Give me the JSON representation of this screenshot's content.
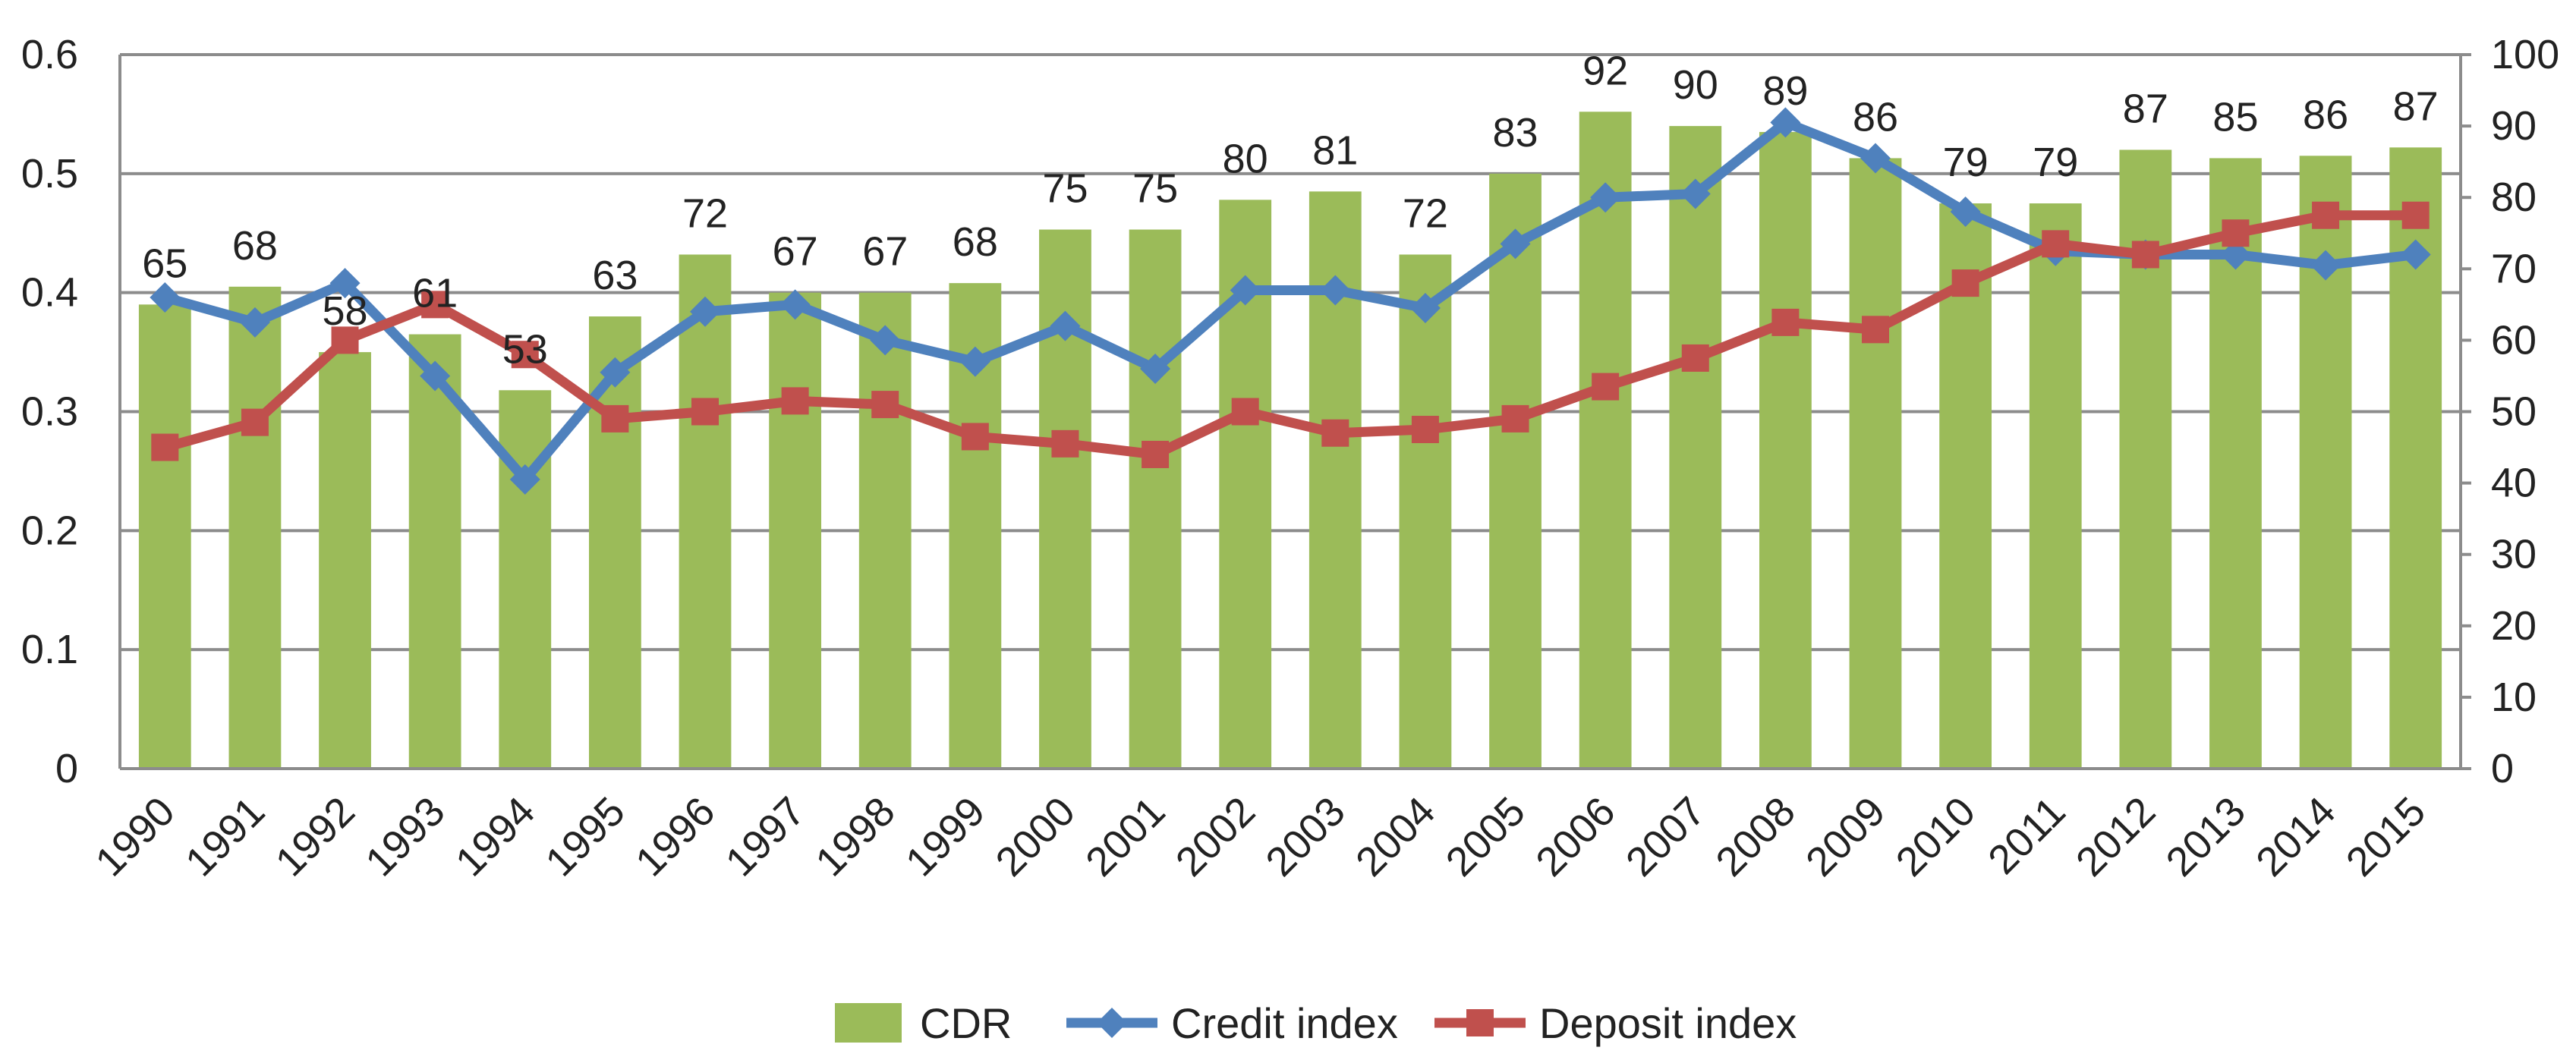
{
  "chart_data": {
    "type": "bar",
    "title": "",
    "categories": [
      "1990",
      "1991",
      "1992",
      "1993",
      "1994",
      "1995",
      "1996",
      "1997",
      "1998",
      "1999",
      "2000",
      "2001",
      "2002",
      "2003",
      "2004",
      "2005",
      "2006",
      "2007",
      "2008",
      "2009",
      "2010",
      "2011",
      "2012",
      "2013",
      "2014",
      "2015"
    ],
    "series": [
      {
        "name": "CDR",
        "type": "bar",
        "axis": "left",
        "color": "#9bbb59",
        "values": [
          0.39,
          0.405,
          0.35,
          0.365,
          0.318,
          0.38,
          0.432,
          0.4,
          0.4,
          0.408,
          0.453,
          0.453,
          0.478,
          0.485,
          0.432,
          0.5,
          0.552,
          0.54,
          0.535,
          0.513,
          0.475,
          0.475,
          0.52,
          0.513,
          0.515,
          0.522
        ],
        "labels": [
          "65",
          "68",
          "58",
          "61",
          "53",
          "63",
          "72",
          "67",
          "67",
          "68",
          "75",
          "75",
          "80",
          "81",
          "72",
          "83",
          "92",
          "90",
          "89",
          "86",
          "79",
          "79",
          "87",
          "85",
          "86",
          "87"
        ]
      },
      {
        "name": "Credit index",
        "type": "line",
        "marker": "diamond",
        "axis": "right",
        "color": "#4f81bd",
        "values": [
          66,
          62.5,
          68,
          55,
          40.5,
          55.5,
          64,
          65,
          60,
          57,
          62,
          56,
          67,
          67,
          64.5,
          73.5,
          80,
          80.5,
          90.5,
          85.5,
          78,
          72.5,
          72,
          72,
          70.5,
          72
        ]
      },
      {
        "name": "Deposit index",
        "type": "line",
        "marker": "square",
        "axis": "right",
        "color": "#c0504d",
        "values": [
          45,
          48.5,
          60,
          65,
          58,
          49,
          50,
          51.5,
          51,
          46.5,
          45.5,
          44,
          50,
          47,
          47.5,
          49,
          53.5,
          57.5,
          62.5,
          61.5,
          68,
          73.5,
          72,
          75,
          77.5,
          77.5
        ]
      }
    ],
    "y_left": {
      "ylim": [
        0,
        0.6
      ],
      "ticks": [
        "0",
        "0.1",
        "0.2",
        "0.3",
        "0.4",
        "0.5",
        "0.6"
      ]
    },
    "y_right": {
      "ylim": [
        0,
        100
      ],
      "ticks": [
        "0",
        "10",
        "20",
        "30",
        "40",
        "50",
        "60",
        "70",
        "80",
        "90",
        "100"
      ]
    },
    "grid": true,
    "legend": {
      "position": "bottom",
      "entries": [
        "CDR",
        "Credit index",
        "Deposit index"
      ]
    }
  }
}
